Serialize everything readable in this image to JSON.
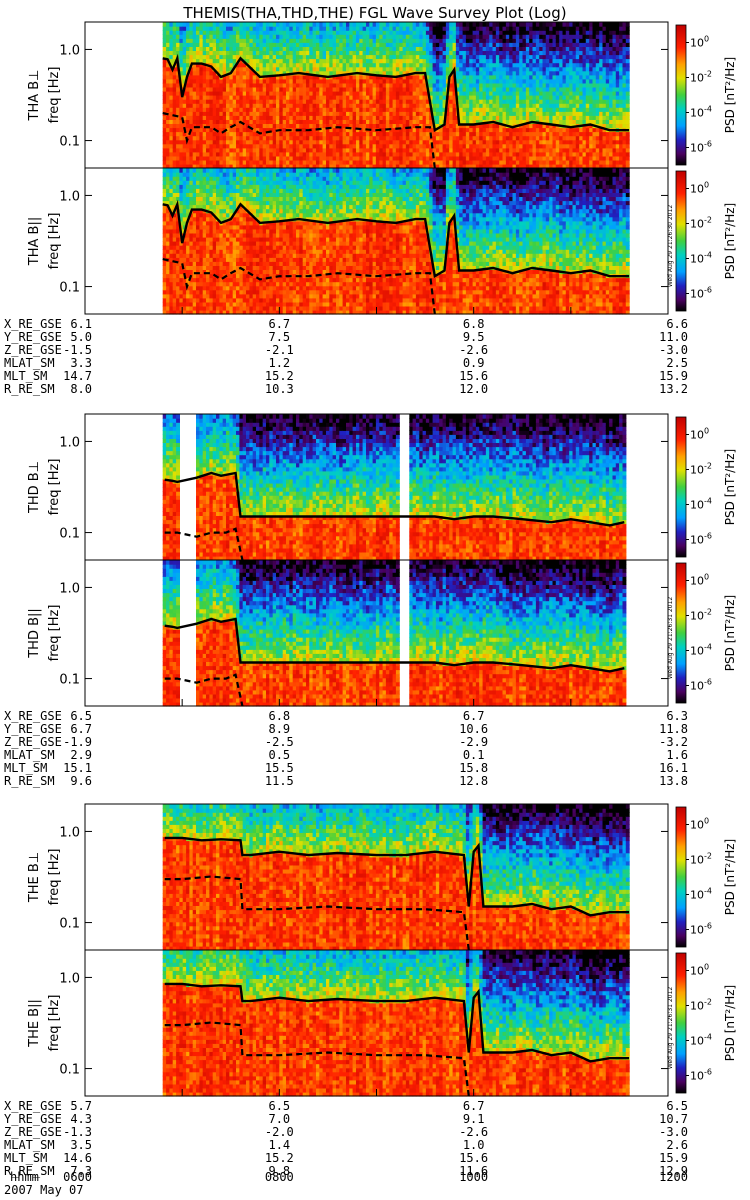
{
  "chart_data": {
    "type": "heatmap",
    "title": "THEMIS(THA,THD,THE) FGL Wave Survey Plot (Log)",
    "date_label": "2007 May 07",
    "time_row_label": "hhmm",
    "time_ticks": [
      "0600",
      "0800",
      "1000",
      "1200"
    ],
    "time_range_hours": [
      6,
      12
    ],
    "freq_ticks": [
      "0.1",
      "1.0"
    ],
    "freq_ylim_hz": [
      0.05,
      2.0
    ],
    "colorbar": {
      "label": "PSD [nT²/Hz]",
      "tick_exponents": [
        "0",
        "-2",
        "-4",
        "-6"
      ],
      "log_range": [
        -7,
        1
      ]
    },
    "timestamps": [
      "Wed Aug 29 21:26:30 2012",
      "Wed Aug 29 21:26:31 2012",
      "Wed Aug 29 21:26:31 2012"
    ],
    "probes": [
      {
        "id": "THA",
        "panels": [
          {
            "label": "THA B⊥",
            "ylabel": "freq [Hz]"
          },
          {
            "label": "THA B||",
            "ylabel": "freq [Hz]"
          }
        ],
        "data_gaps_hours": [],
        "upper_curve_hz": {
          "t": [
            6.8,
            6.85,
            6.9,
            6.95,
            7.0,
            7.05,
            7.1,
            7.2,
            7.3,
            7.4,
            7.5,
            7.6,
            7.8,
            8.0,
            8.2,
            8.5,
            8.8,
            9.0,
            9.2,
            9.4,
            9.5,
            9.6,
            9.7,
            9.75,
            9.8,
            9.85,
            9.9,
            10.0,
            10.2,
            10.4,
            10.6,
            10.8,
            11.0,
            11.2,
            11.4,
            11.6
          ],
          "f": [
            0.8,
            0.78,
            0.6,
            0.8,
            0.3,
            0.5,
            0.7,
            0.7,
            0.65,
            0.5,
            0.55,
            0.8,
            0.5,
            0.52,
            0.55,
            0.5,
            0.55,
            0.52,
            0.5,
            0.55,
            0.55,
            0.13,
            0.15,
            0.5,
            0.6,
            0.15,
            0.15,
            0.15,
            0.16,
            0.14,
            0.16,
            0.15,
            0.14,
            0.15,
            0.13,
            0.13
          ]
        },
        "lower_curve_hz": {
          "t": [
            6.8,
            7.0,
            7.05,
            7.1,
            7.2,
            7.3,
            7.4,
            7.5,
            7.6,
            7.8,
            8.0,
            8.3,
            8.6,
            9.0,
            9.4,
            9.55,
            9.6
          ],
          "f": [
            0.2,
            0.18,
            0.1,
            0.14,
            0.14,
            0.14,
            0.12,
            0.14,
            0.16,
            0.12,
            0.13,
            0.13,
            0.14,
            0.13,
            0.14,
            0.14,
            0.03
          ]
        },
        "ephemeris": {
          "labels": [
            "X_RE_GSE",
            "Y_RE_GSE",
            "Z_RE_GSE",
            "MLAT_SM",
            "MLT_SM",
            "R_RE_SM"
          ],
          "columns": [
            [
              "6.1",
              "5.0",
              "-1.5",
              "3.3",
              "14.7",
              "8.0"
            ],
            [
              "6.7",
              "7.5",
              "-2.1",
              "1.2",
              "15.2",
              "10.3"
            ],
            [
              "6.8",
              "9.5",
              "-2.6",
              "0.9",
              "15.6",
              "12.0"
            ],
            [
              "6.6",
              "11.0",
              "-3.0",
              "2.5",
              "15.9",
              "13.2"
            ]
          ]
        }
      },
      {
        "id": "THD",
        "panels": [
          {
            "label": "THD B⊥",
            "ylabel": "freq [Hz]"
          },
          {
            "label": "THD B||",
            "ylabel": "freq [Hz]"
          }
        ],
        "data_gaps_hours": [
          [
            6.0,
            6.8
          ],
          [
            6.98,
            7.15
          ],
          [
            9.25,
            9.35
          ],
          [
            11.55,
            12.0
          ]
        ],
        "upper_curve_hz": {
          "t": [
            6.82,
            6.9,
            6.95,
            7.15,
            7.3,
            7.4,
            7.55,
            7.6,
            7.8,
            8.2,
            8.6,
            9.0,
            9.2,
            9.4,
            9.6,
            9.8,
            10.0,
            10.2,
            10.5,
            10.8,
            11.0,
            11.2,
            11.4,
            11.55
          ],
          "f": [
            0.38,
            0.37,
            0.36,
            0.4,
            0.45,
            0.42,
            0.45,
            0.15,
            0.15,
            0.15,
            0.15,
            0.15,
            0.15,
            0.15,
            0.15,
            0.14,
            0.15,
            0.15,
            0.14,
            0.13,
            0.14,
            0.13,
            0.12,
            0.13
          ]
        },
        "lower_curve_hz": {
          "t": [
            6.82,
            6.95,
            7.15,
            7.3,
            7.45,
            7.55,
            7.62
          ],
          "f": [
            0.1,
            0.1,
            0.09,
            0.1,
            0.1,
            0.11,
            0.03
          ]
        },
        "ephemeris": {
          "labels": [
            "X_RE_GSE",
            "Y_RE_GSE",
            "Z_RE_GSE",
            "MLAT_SM",
            "MLT_SM",
            "R_RE_SM"
          ],
          "columns": [
            [
              "6.5",
              "6.7",
              "-1.9",
              "2.9",
              "15.1",
              "9.6"
            ],
            [
              "6.8",
              "8.9",
              "-2.5",
              "0.5",
              "15.5",
              "11.5"
            ],
            [
              "6.7",
              "10.6",
              "-2.9",
              "0.1",
              "15.8",
              "12.8"
            ],
            [
              "6.3",
              "11.8",
              "-3.2",
              "1.6",
              "16.1",
              "13.8"
            ]
          ]
        }
      },
      {
        "id": "THE",
        "panels": [
          {
            "label": "THE B⊥",
            "ylabel": "freq [Hz]"
          },
          {
            "label": "THE B||",
            "ylabel": "freq [Hz]"
          }
        ],
        "data_gaps_hours": [],
        "upper_curve_hz": {
          "t": [
            6.82,
            7.0,
            7.2,
            7.4,
            7.6,
            7.62,
            7.7,
            8.0,
            8.3,
            8.6,
            9.0,
            9.3,
            9.6,
            9.9,
            9.95,
            10.0,
            10.05,
            10.1,
            10.2,
            10.4,
            10.6,
            10.8,
            11.0,
            11.2,
            11.4,
            11.6
          ],
          "f": [
            0.85,
            0.85,
            0.8,
            0.82,
            0.8,
            0.55,
            0.55,
            0.6,
            0.55,
            0.58,
            0.55,
            0.55,
            0.6,
            0.55,
            0.15,
            0.6,
            0.7,
            0.15,
            0.15,
            0.15,
            0.16,
            0.14,
            0.15,
            0.12,
            0.13,
            0.13
          ]
        },
        "lower_curve_hz": {
          "t": [
            6.82,
            7.0,
            7.3,
            7.6,
            7.62,
            8.0,
            8.5,
            9.0,
            9.5,
            9.9,
            9.95
          ],
          "f": [
            0.3,
            0.3,
            0.32,
            0.3,
            0.14,
            0.14,
            0.15,
            0.14,
            0.14,
            0.13,
            0.03
          ]
        },
        "ephemeris": {
          "labels": [
            "X_RE_GSE",
            "Y_RE_GSE",
            "Z_RE_GSE",
            "MLAT_SM",
            "MLT_SM",
            "R_RE_SM"
          ],
          "columns": [
            [
              "5.7",
              "4.3",
              "-1.3",
              "3.5",
              "14.6",
              "7.3"
            ],
            [
              "6.5",
              "7.0",
              "-2.0",
              "1.4",
              "15.2",
              "9.8"
            ],
            [
              "6.7",
              "9.1",
              "-2.6",
              "1.0",
              "15.6",
              "11.6"
            ],
            [
              "6.5",
              "10.7",
              "-3.0",
              "2.6",
              "15.9",
              "12.9"
            ]
          ]
        }
      }
    ]
  }
}
